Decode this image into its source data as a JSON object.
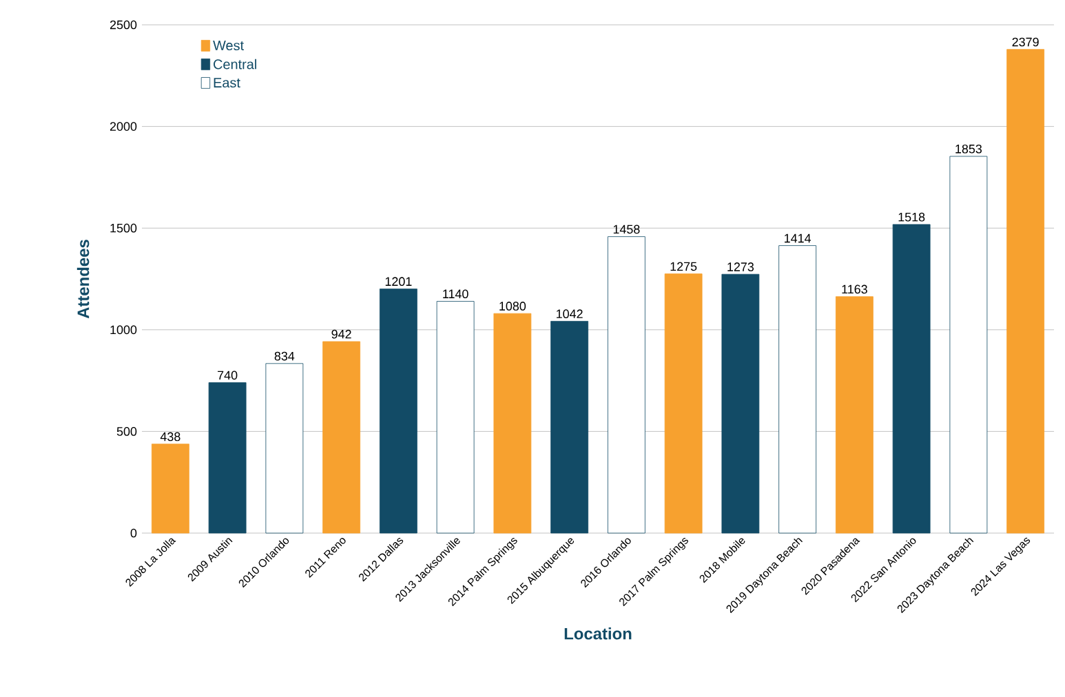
{
  "chart_data": {
    "type": "bar",
    "xlabel": "Location",
    "ylabel": "Attendees",
    "categories": [
      "2008 La Jolla",
      "2009 Austin",
      "2010 Orlando",
      "2011 Reno",
      "2012 Dallas",
      "2013 Jacksonville",
      "2014 Palm Springs",
      "2015 Albuquerque",
      "2016 Orlando",
      "2017 Palm Springs",
      "2018 Mobile",
      "2019 Daytona Beach",
      "2020 Pasadena",
      "2022 San Antonio",
      "2023 Daytona Beach",
      "2024 Las Vegas"
    ],
    "series": [
      {
        "name": "West",
        "color": "#f7a12f",
        "values": [
          438,
          null,
          null,
          942,
          null,
          null,
          1080,
          null,
          null,
          1275,
          null,
          null,
          1163,
          null,
          null,
          2379
        ]
      },
      {
        "name": "Central",
        "color": "#124b66",
        "values": [
          null,
          740,
          null,
          null,
          1201,
          null,
          null,
          1042,
          null,
          null,
          1273,
          null,
          null,
          1518,
          null,
          null
        ]
      },
      {
        "name": "East",
        "color": "#ffffff",
        "values": [
          null,
          null,
          834,
          null,
          null,
          1140,
          null,
          null,
          1458,
          null,
          null,
          1414,
          null,
          null,
          1853,
          null
        ]
      }
    ],
    "ylim": [
      0,
      2500
    ],
    "yticks": [
      0,
      500,
      1000,
      1500,
      2000,
      2500
    ],
    "grid": "y",
    "legend": "top left",
    "data_labels": true
  }
}
